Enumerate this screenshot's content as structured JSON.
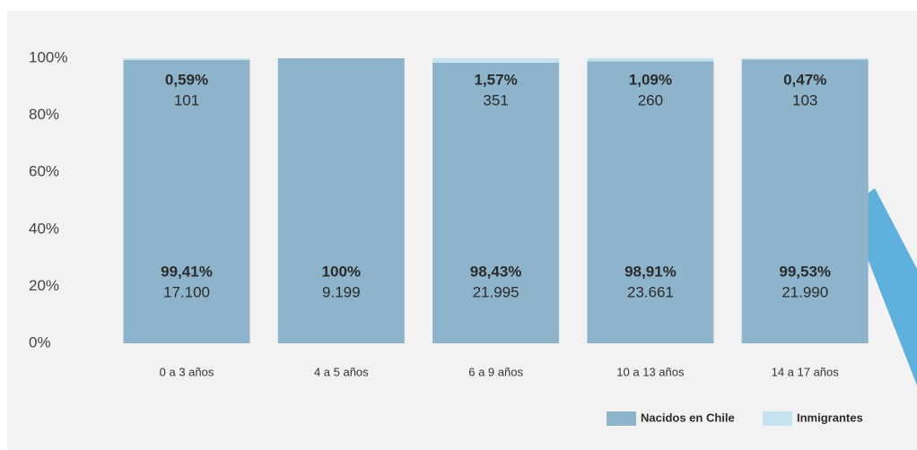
{
  "chart_data": {
    "type": "stacked_bar",
    "categories": [
      "0 a 3 años",
      "4 a 5 años",
      "6 a 9 años",
      "10 a 13 años",
      "14 a 17 años"
    ],
    "series": [
      {
        "name": "Nacidos en Chile",
        "color": "#8db4cb",
        "values": [
          99.41,
          100,
          98.43,
          98.91,
          99.53
        ],
        "value_labels": [
          "99,41%",
          "100%",
          "98,43%",
          "98,91%",
          "99,53%"
        ],
        "counts": [
          {
            "value": 17100,
            "label": "17.100"
          },
          {
            "value": 9199,
            "label": "9.199"
          },
          {
            "value": 21995,
            "label": "21.995"
          },
          {
            "value": 23661,
            "label": "23.661"
          },
          {
            "value": 21990,
            "label": "21.990"
          }
        ]
      },
      {
        "name": "Inmigrantes",
        "color": "#c5e3ee",
        "values": [
          0.59,
          0,
          1.57,
          1.09,
          0.47
        ],
        "value_labels": [
          "0,59%",
          null,
          "1,57%",
          "1,09%",
          "0,47%"
        ],
        "counts": [
          {
            "value": 101,
            "label": "101"
          },
          null,
          {
            "value": 351,
            "label": "351"
          },
          {
            "value": 260,
            "label": "260"
          },
          {
            "value": 103,
            "label": "103"
          }
        ]
      }
    ],
    "ylim": [
      0,
      100
    ],
    "yticks": [
      {
        "value": 0,
        "label": "0%"
      },
      {
        "value": 20,
        "label": "20%"
      },
      {
        "value": 40,
        "label": "40%"
      },
      {
        "value": 60,
        "label": "60%"
      },
      {
        "value": 80,
        "label": "80%"
      },
      {
        "value": 100,
        "label": "100%"
      }
    ],
    "legend": "bottom-right"
  }
}
